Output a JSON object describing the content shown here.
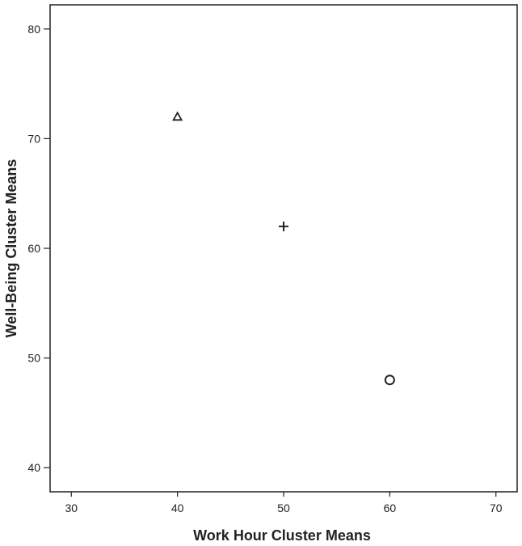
{
  "chart_data": {
    "type": "scatter",
    "title": "",
    "xlabel": "Work Hour Cluster Means",
    "ylabel": "Well-Being Cluster Means",
    "xlim": [
      28,
      72
    ],
    "ylim": [
      37.8,
      82.2
    ],
    "xticks": [
      30,
      40,
      50,
      60,
      70
    ],
    "yticks": [
      40,
      50,
      60,
      70,
      80
    ],
    "grid": false,
    "legend": "none",
    "points": [
      {
        "x": 40,
        "y": 72,
        "marker": "triangle"
      },
      {
        "x": 50,
        "y": 62,
        "marker": "plus"
      },
      {
        "x": 60,
        "y": 48,
        "marker": "circle"
      }
    ],
    "colors": {
      "axis": "#222222",
      "marker": "#222222",
      "background": "#ffffff"
    }
  }
}
